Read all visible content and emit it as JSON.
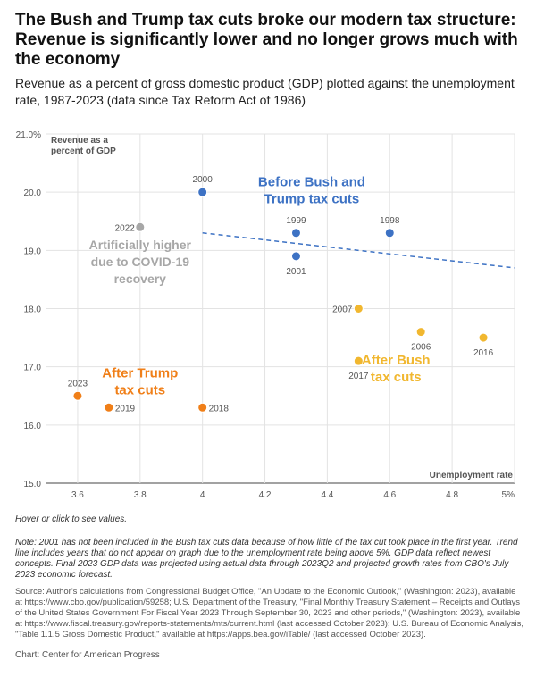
{
  "title": "The Bush and Trump tax cuts broke our modern tax structure: Revenue is significantly lower and no longer grows much with the economy",
  "subtitle": "Revenue as a percent of gross domestic product (GDP) plotted against the unemployment rate, 1987-2023 (data since Tax Reform Act of 1986)",
  "hover_text": "Hover or click to see values.",
  "note": "Note: 2001 has not been included in the Bush tax cuts data because of how little of the tax cut took place in the first year. Trend line includes years that do not appear on graph due to the unemployment rate being above 5%. GDP data reflect newest concepts. Final 2023 GDP data was projected using actual data through 2023Q2 and projected growth rates from CBO's July 2023 economic forecast.",
  "source": "Source: Author's calculations from Congressional Budget Office, \"An Update to the Economic Outlook,\" (Washington: 2023), available at https://www.cbo.gov/publication/59258; U.S. Department of the Treasury, \"Final Monthly Treasury Statement – Receipts and Outlays of the United States Government For Fiscal Year 2023 Through September 30, 2023 and other periods,\" (Washington: 2023), available at https://www.fiscal.treasury.gov/reports-statements/mts/current.html (last accessed October 2023); U.S. Bureau of Economic Analysis, \"Table 1.1.5 Gross Domestic Product,\" available at https://apps.bea.gov/iTable/ (last accessed October 2023).",
  "credit": "Chart: Center for American Progress",
  "chart_data": {
    "type": "scatter",
    "ylabel": "Revenue as a percent of GDP",
    "xlabel": "Unemployment rate",
    "xlim": [
      3.5,
      5.0
    ],
    "ylim": [
      15.0,
      21.0
    ],
    "x_ticks": [
      "3.6",
      "3.8",
      "4",
      "4.2",
      "4.4",
      "4.6",
      "4.8",
      "5%"
    ],
    "y_ticks": [
      "15.0",
      "16.0",
      "17.0",
      "18.0",
      "19.0",
      "20.0",
      "21.0%"
    ],
    "grid": true,
    "colors": {
      "before_bush": "#3d72c4",
      "after_bush": "#f1b72f",
      "after_trump": "#f07f18",
      "covid": "#a7a7a7",
      "trend": "#3d72c4"
    },
    "series": [
      {
        "name": "Before Bush and Trump tax cuts",
        "color_key": "before_bush",
        "points": [
          {
            "label": "2000",
            "x": 4.0,
            "y": 20.0
          },
          {
            "label": "1999",
            "x": 4.3,
            "y": 19.3
          },
          {
            "label": "2001",
            "x": 4.3,
            "y": 18.9
          },
          {
            "label": "1998",
            "x": 4.6,
            "y": 19.3
          }
        ]
      },
      {
        "name": "Artificially higher due to COVID-19 recovery",
        "color_key": "covid",
        "points": [
          {
            "label": "2022",
            "x": 3.8,
            "y": 19.4
          }
        ]
      },
      {
        "name": "After Bush tax cuts",
        "color_key": "after_bush",
        "points": [
          {
            "label": "2007",
            "x": 4.5,
            "y": 18.0
          },
          {
            "label": "2006",
            "x": 4.7,
            "y": 17.6
          },
          {
            "label": "2016",
            "x": 4.9,
            "y": 17.5
          },
          {
            "label": "2017",
            "x": 4.5,
            "y": 17.1
          }
        ]
      },
      {
        "name": "After Trump tax cuts",
        "color_key": "after_trump",
        "points": [
          {
            "label": "2023",
            "x": 3.6,
            "y": 16.5
          },
          {
            "label": "2019",
            "x": 3.7,
            "y": 16.3
          },
          {
            "label": "2018",
            "x": 4.0,
            "y": 16.3
          }
        ]
      }
    ],
    "trend_line": {
      "x": [
        4.0,
        5.0
      ],
      "y": [
        19.3,
        18.7
      ]
    },
    "annotations": [
      {
        "lines": [
          "Before Bush and",
          "Trump tax cuts"
        ],
        "color_key": "before_bush",
        "x": 4.35,
        "y": 20.1
      },
      {
        "lines": [
          "Artificially higher",
          "due to COVID-19",
          "recovery"
        ],
        "color_key": "covid",
        "x": 3.8,
        "y": 19.02
      },
      {
        "lines": [
          "After Trump",
          "tax cuts"
        ],
        "color_key": "after_trump",
        "x": 3.8,
        "y": 16.82
      },
      {
        "lines": [
          "After Bush",
          "tax cuts"
        ],
        "color_key": "after_bush",
        "x": 4.62,
        "y": 17.04
      }
    ]
  }
}
